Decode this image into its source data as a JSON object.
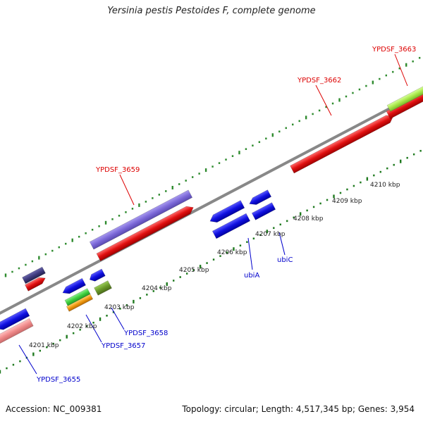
{
  "title": "Yersinia pestis Pestoides F, complete genome",
  "footer": {
    "accession": "Accession: NC_009381",
    "summary": "Topology: circular; Length: 4,517,345 bp; Genes: 3,954"
  },
  "scale_ticks": [
    {
      "label": "4201 kbp"
    },
    {
      "label": "4202 kbp"
    },
    {
      "label": "4203 kbp"
    },
    {
      "label": "4204 kbp"
    },
    {
      "label": "4205 kbp"
    },
    {
      "label": "4206 kbp"
    },
    {
      "label": "4207 kbp"
    },
    {
      "label": "4208 kbp"
    },
    {
      "label": "4209 kbp"
    },
    {
      "label": "4210 kbp"
    }
  ],
  "gene_labels": [
    {
      "text": "YPDSF_3655",
      "strand": "minus",
      "color": "#0000cc"
    },
    {
      "text": "YPDSF_3657",
      "strand": "minus",
      "color": "#0000cc"
    },
    {
      "text": "YPDSF_3658",
      "strand": "minus",
      "color": "#0000cc"
    },
    {
      "text": "ubiA",
      "strand": "minus",
      "color": "#0000cc"
    },
    {
      "text": "ubiC",
      "strand": "minus",
      "color": "#0000cc"
    },
    {
      "text": "YPDSF_3659",
      "strand": "plus",
      "color": "#dd0000"
    },
    {
      "text": "YPDSF_3662",
      "strand": "plus",
      "color": "#dd0000"
    },
    {
      "text": "YPDSF_3663",
      "strand": "plus",
      "color": "#dd0000"
    }
  ],
  "colors": {
    "backbone": "#8a8a8a",
    "tick_plus": "#2e8b2e",
    "tick_minus": "#1f7a1f",
    "feature_red": "#e01010",
    "feature_blue": "#1010e0",
    "feature_purple": "#7b68d8",
    "feature_darkpurple": "#3e3a7e",
    "feature_pink": "#f08a8a",
    "feature_green": "#3fcf3f",
    "feature_orange": "#f09a10",
    "feature_olive": "#6a9a2a",
    "feature_lime": "#a8e84a"
  }
}
